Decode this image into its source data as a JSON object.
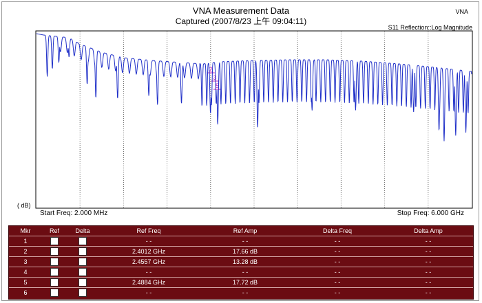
{
  "chart_data": {
    "type": "line",
    "title": "VNA Measurement Data",
    "subtitle": "Captured  (2007/8/23 上午 09:04:11)",
    "corner_label": "VNA",
    "measurement": "S11 Reflection::Log Magnitude",
    "ylabel": "( dB)",
    "start_label": "Start Freq: 2.000 MHz",
    "stop_label": "Stop Freq: 6.000 GHz",
    "xlim": [
      0.002,
      6.0
    ],
    "grid_vertical": true,
    "series_color": "#1f2fc8",
    "marker_color": "#c020c0",
    "envelope_top": [
      [
        0.002,
        3
      ],
      [
        0.1,
        5
      ],
      [
        0.3,
        7
      ],
      [
        0.45,
        9
      ],
      [
        0.6,
        18
      ],
      [
        0.9,
        30
      ],
      [
        1.2,
        38
      ],
      [
        1.6,
        42
      ],
      [
        2.0,
        45
      ],
      [
        2.3,
        47
      ],
      [
        2.5,
        44
      ],
      [
        3.0,
        42
      ],
      [
        3.5,
        41
      ],
      [
        4.0,
        41
      ],
      [
        4.5,
        43
      ],
      [
        5.0,
        47
      ],
      [
        5.5,
        52
      ],
      [
        6.0,
        58
      ]
    ],
    "dips": [
      {
        "x": 0.15,
        "depth": 60
      },
      {
        "x": 0.22,
        "depth": 48
      },
      {
        "x": 0.31,
        "depth": 38
      },
      {
        "x": 0.45,
        "depth": 28
      },
      {
        "x": 0.7,
        "depth": 55
      },
      {
        "x": 0.82,
        "depth": 70
      },
      {
        "x": 1.12,
        "depth": 62
      },
      {
        "x": 1.55,
        "depth": 52
      },
      {
        "x": 1.67,
        "depth": 64
      },
      {
        "x": 2.0,
        "depth": 60
      },
      {
        "x": 2.4,
        "depth": 74
      },
      {
        "x": 2.5,
        "depth": 92
      },
      {
        "x": 2.48,
        "depth": 60
      },
      {
        "x": 3.05,
        "depth": 98
      },
      {
        "x": 3.8,
        "depth": 74
      },
      {
        "x": 4.4,
        "depth": 72
      },
      {
        "x": 5.2,
        "depth": 68
      },
      {
        "x": 5.55,
        "depth": 92
      },
      {
        "x": 5.62,
        "depth": 106
      },
      {
        "x": 5.78,
        "depth": 96
      },
      {
        "x": 5.92,
        "depth": 90
      }
    ],
    "ripple_start": 2.25,
    "ripple_period": 0.0655,
    "ripple_depth": 62
  },
  "marker_table": {
    "headers": [
      "Mkr",
      "Ref",
      "Delta",
      "Ref Freq",
      "Ref Amp",
      "Delta Freq",
      "Delta Amp"
    ],
    "rows": [
      {
        "mkr": "1",
        "ref_freq": "- -",
        "ref_amp": "- -",
        "delta_freq": "- -",
        "delta_amp": "- -"
      },
      {
        "mkr": "2",
        "ref_freq": "2.4012 GHz",
        "ref_amp": "17.66 dB",
        "delta_freq": "- -",
        "delta_amp": "- -"
      },
      {
        "mkr": "3",
        "ref_freq": "2.4557 GHz",
        "ref_amp": "13.28 dB",
        "delta_freq": "- -",
        "delta_amp": "- -"
      },
      {
        "mkr": "4",
        "ref_freq": "- -",
        "ref_amp": "- -",
        "delta_freq": "- -",
        "delta_amp": "- -"
      },
      {
        "mkr": "5",
        "ref_freq": "2.4884 GHz",
        "ref_amp": "17.72 dB",
        "delta_freq": "- -",
        "delta_amp": "- -"
      },
      {
        "mkr": "6",
        "ref_freq": "- -",
        "ref_amp": "- -",
        "delta_freq": "- -",
        "delta_amp": "- -"
      }
    ]
  }
}
